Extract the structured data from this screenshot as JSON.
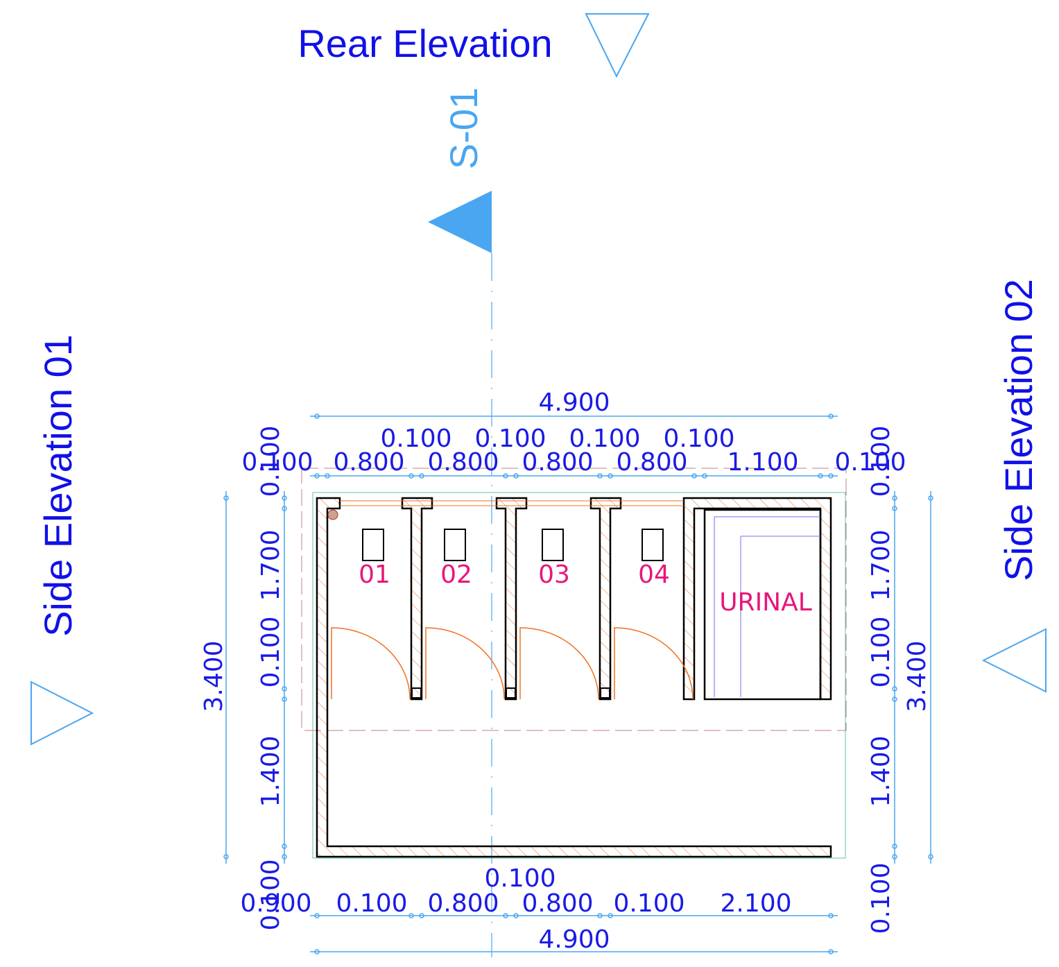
{
  "labels": {
    "rear_elevation": "Rear Elevation",
    "section": "S-01",
    "side_elevation_01": "Side Elevation 01",
    "side_elevation_02": "Side Elevation 02"
  },
  "rooms": [
    "01",
    "02",
    "03",
    "04",
    "URINAL"
  ],
  "dimensions": {
    "top": {
      "overall": "4.900",
      "chain": [
        "0.100",
        "0.800",
        "0.800",
        "0.800",
        "0.800",
        "1.100",
        "0.100"
      ],
      "partitions": [
        "0.100",
        "0.100",
        "0.100",
        "0.100"
      ]
    },
    "bottom": {
      "overall": "4.900",
      "chain": [
        "0.900",
        "0.100",
        "0.800",
        "0.800",
        "0.100",
        "2.100"
      ],
      "upper": "0.100"
    },
    "left": {
      "overall": "3.400",
      "chain": [
        "0.100",
        "1.700",
        "0.100",
        "1.400",
        "0.100"
      ]
    },
    "right": {
      "overall": "3.400",
      "chain": [
        "0.100",
        "1.700",
        "0.100",
        "1.400",
        "0.100"
      ]
    }
  }
}
